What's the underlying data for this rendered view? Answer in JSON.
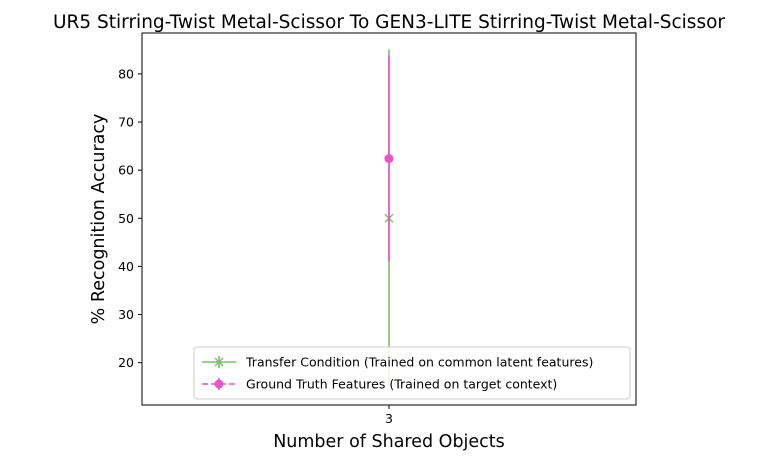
{
  "chart_data": {
    "type": "line",
    "title": "UR5 Stirring-Twist Metal-Scissor To GEN3-LITE Stirring-Twist Metal-Scissor",
    "xlabel": "Number of Shared Objects",
    "ylabel": "% Recognition Accuracy",
    "x": [
      3
    ],
    "x_tick_labels": [
      "3"
    ],
    "ylim": [
      11.2,
      88.5
    ],
    "y_ticks": [
      20,
      30,
      40,
      50,
      60,
      70,
      80
    ],
    "y_tick_labels": [
      "20",
      "30",
      "40",
      "50",
      "60",
      "70",
      "80"
    ],
    "grid": false,
    "legend_position": "lower-right",
    "series": [
      {
        "name": "Transfer Condition (Trained on common latent features)",
        "values": [
          50.0
        ],
        "error_low": [
          14.9
        ],
        "error_high": [
          85.1
        ],
        "color": "#7fbf6f",
        "marker": "x",
        "linestyle": "solid"
      },
      {
        "name": "Ground Truth Features (Trained on target context)",
        "values": [
          62.4
        ],
        "error_low": [
          41.0
        ],
        "error_high": [
          83.8
        ],
        "color": "#f050c8",
        "marker": "o",
        "linestyle": "dashed"
      }
    ]
  }
}
